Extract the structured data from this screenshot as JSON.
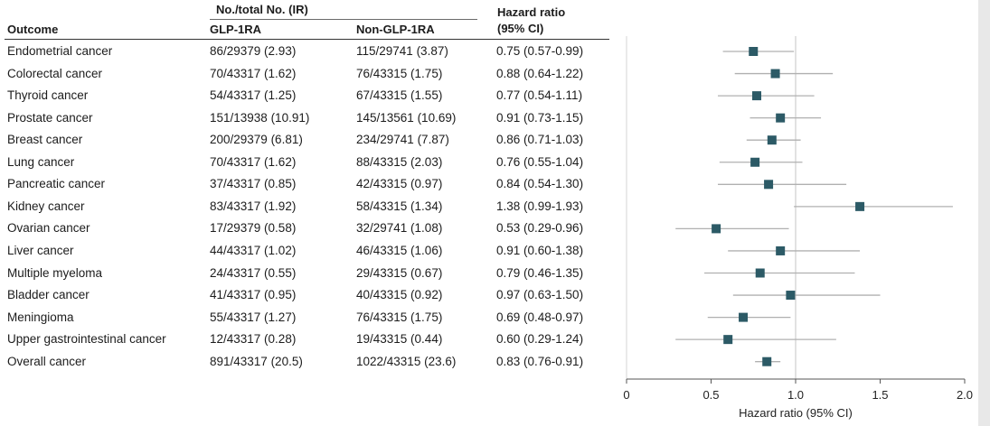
{
  "table": {
    "headers": {
      "outcome": "Outcome",
      "group": "No./total No. (IR)",
      "glp": "GLP-1RA",
      "nonglp": "Non-GLP-1RA",
      "hr1": "Hazard ratio",
      "hr2": "(95% CI)"
    },
    "rows": [
      {
        "outcome": "Endometrial cancer",
        "glp": "86/29379 (2.93)",
        "nonglp": "115/29741 (3.87)",
        "hr": "0.75 (0.57-0.99)"
      },
      {
        "outcome": "Colorectal cancer",
        "glp": "70/43317 (1.62)",
        "nonglp": "76/43315 (1.75)",
        "hr": "0.88 (0.64-1.22)"
      },
      {
        "outcome": "Thyroid cancer",
        "glp": "54/43317 (1.25)",
        "nonglp": "67/43315 (1.55)",
        "hr": "0.77 (0.54-1.11)"
      },
      {
        "outcome": "Prostate cancer",
        "glp": "151/13938 (10.91)",
        "nonglp": "145/13561 (10.69)",
        "hr": "0.91 (0.73-1.15)"
      },
      {
        "outcome": "Breast cancer",
        "glp": "200/29379 (6.81)",
        "nonglp": "234/29741 (7.87)",
        "hr": "0.86 (0.71-1.03)"
      },
      {
        "outcome": "Lung cancer",
        "glp": "70/43317 (1.62)",
        "nonglp": "88/43315 (2.03)",
        "hr": "0.76 (0.55-1.04)"
      },
      {
        "outcome": "Pancreatic cancer",
        "glp": "37/43317 (0.85)",
        "nonglp": "42/43315 (0.97)",
        "hr": "0.84 (0.54-1.30)"
      },
      {
        "outcome": "Kidney cancer",
        "glp": "83/43317 (1.92)",
        "nonglp": "58/43315 (1.34)",
        "hr": "1.38 (0.99-1.93)"
      },
      {
        "outcome": "Ovarian cancer",
        "glp": "17/29379 (0.58)",
        "nonglp": "32/29741 (1.08)",
        "hr": "0.53 (0.29-0.96)"
      },
      {
        "outcome": "Liver cancer",
        "glp": "44/43317 (1.02)",
        "nonglp": "46/43315 (1.06)",
        "hr": "0.91 (0.60-1.38)"
      },
      {
        "outcome": "Multiple myeloma",
        "glp": "24/43317 (0.55)",
        "nonglp": "29/43315 (0.67)",
        "hr": "0.79 (0.46-1.35)"
      },
      {
        "outcome": "Bladder cancer",
        "glp": "41/43317 (0.95)",
        "nonglp": "40/43315 (0.92)",
        "hr": "0.97 (0.63-1.50)"
      },
      {
        "outcome": "Meningioma",
        "glp": "55/43317 (1.27)",
        "nonglp": "76/43315 (1.75)",
        "hr": "0.69 (0.48-0.97)"
      },
      {
        "outcome": "Upper gastrointestinal cancer",
        "glp": "12/43317 (0.28)",
        "nonglp": "19/43315 (0.44)",
        "hr": "0.60 (0.29-1.24)"
      },
      {
        "outcome": "Overall cancer",
        "glp": "891/43317 (20.5)",
        "nonglp": "1022/43315 (23.6)",
        "hr": "0.83 (0.76-0.91)"
      }
    ]
  },
  "chart_data": {
    "type": "forest",
    "xlabel": "Hazard ratio (95% CI)",
    "xlim": [
      0,
      2.0
    ],
    "reference_line": 1.0,
    "ticks": [
      0,
      0.5,
      1.0,
      1.5,
      2.0
    ],
    "tick_labels": [
      "0",
      "0.5",
      "1.0",
      "1.5",
      "2.0"
    ],
    "categories": [
      "Endometrial cancer",
      "Colorectal cancer",
      "Thyroid cancer",
      "Prostate cancer",
      "Breast cancer",
      "Lung cancer",
      "Pancreatic cancer",
      "Kidney cancer",
      "Ovarian cancer",
      "Liver cancer",
      "Multiple myeloma",
      "Bladder cancer",
      "Meningioma",
      "Upper gastrointestinal cancer",
      "Overall cancer"
    ],
    "hr": [
      0.75,
      0.88,
      0.77,
      0.91,
      0.86,
      0.76,
      0.84,
      1.38,
      0.53,
      0.91,
      0.79,
      0.97,
      0.69,
      0.6,
      0.83
    ],
    "lower": [
      0.57,
      0.64,
      0.54,
      0.73,
      0.71,
      0.55,
      0.54,
      0.99,
      0.29,
      0.6,
      0.46,
      0.63,
      0.48,
      0.29,
      0.76
    ],
    "upper": [
      0.99,
      1.22,
      1.11,
      1.15,
      1.03,
      1.04,
      1.3,
      1.93,
      0.96,
      1.38,
      1.35,
      1.5,
      0.97,
      1.24,
      0.91
    ],
    "marker_color": "#2c5a66",
    "ci_color": "#b0b0b0",
    "axis_color": "#555555"
  }
}
